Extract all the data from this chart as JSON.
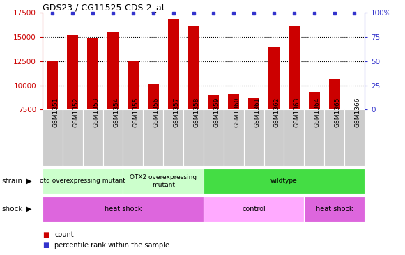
{
  "title": "GDS23 / CG11525-CDS-2_at",
  "samples": [
    "GSM1351",
    "GSM1352",
    "GSM1353",
    "GSM1354",
    "GSM1355",
    "GSM1356",
    "GSM1357",
    "GSM1358",
    "GSM1359",
    "GSM1360",
    "GSM1361",
    "GSM1362",
    "GSM1363",
    "GSM1364",
    "GSM1365",
    "GSM1366"
  ],
  "counts": [
    12500,
    15200,
    14900,
    15500,
    12500,
    10100,
    16900,
    16100,
    9000,
    9100,
    8700,
    13900,
    16100,
    9300,
    10700,
    7600
  ],
  "ylim_left": [
    7500,
    17500
  ],
  "ylim_right": [
    0,
    100
  ],
  "yticks_left": [
    7500,
    10000,
    12500,
    15000,
    17500
  ],
  "yticks_right": [
    0,
    25,
    50,
    75,
    100
  ],
  "ytick_labels_right": [
    "0",
    "25",
    "50",
    "75",
    "100%"
  ],
  "bar_color": "#cc0000",
  "dot_color": "#3333cc",
  "strain_groups": [
    {
      "label": "otd overexpressing mutant",
      "start": 0,
      "end": 4,
      "color": "#ccffcc"
    },
    {
      "label": "OTX2 overexpressing\nmutant",
      "start": 4,
      "end": 8,
      "color": "#ccffcc"
    },
    {
      "label": "wildtype",
      "start": 8,
      "end": 16,
      "color": "#44dd44"
    }
  ],
  "shock_groups": [
    {
      "label": "heat shock",
      "start": 0,
      "end": 8,
      "color": "#dd66dd"
    },
    {
      "label": "control",
      "start": 8,
      "end": 13,
      "color": "#ffaaff"
    },
    {
      "label": "heat shock",
      "start": 13,
      "end": 16,
      "color": "#dd66dd"
    }
  ],
  "strain_label": "strain",
  "shock_label": "shock",
  "legend_count_label": "count",
  "legend_pct_label": "percentile rank within the sample",
  "background_color": "#ffffff",
  "left_axis_color": "#cc0000",
  "right_axis_color": "#3333cc",
  "grid_dotted_values": [
    10000,
    12500,
    15000
  ],
  "tick_box_color": "#cccccc"
}
